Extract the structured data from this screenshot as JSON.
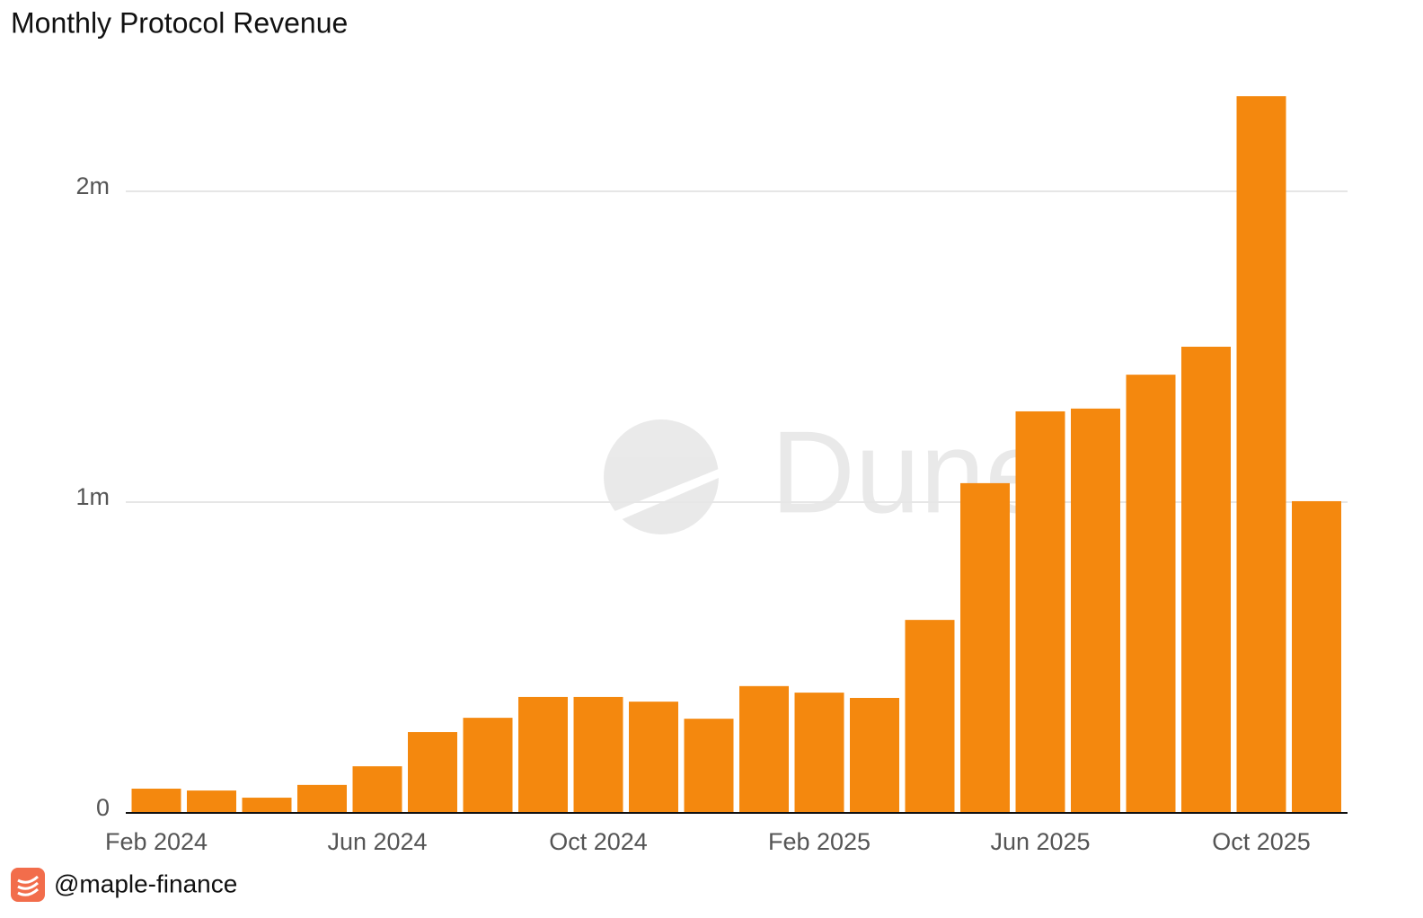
{
  "chart_data": {
    "type": "bar",
    "title": "Monthly Protocol Revenue",
    "categories": [
      "Feb 2024",
      null,
      null,
      null,
      "Jun 2024",
      null,
      null,
      null,
      "Oct 2024",
      null,
      null,
      null,
      "Feb 2025",
      null,
      null,
      null,
      "Jun 2025",
      null,
      null,
      null,
      "Oct 2025",
      null
    ],
    "values": [
      78000,
      72000,
      49000,
      90000,
      150000,
      260000,
      306000,
      373000,
      373000,
      358000,
      303000,
      408000,
      387000,
      370000,
      621000,
      1061000,
      1292000,
      1301000,
      1410000,
      1500000,
      2306000,
      1003000
    ],
    "color": "#f4880e",
    "ylim": [
      0,
      2400000
    ],
    "yticks": [
      0,
      {
        "value": 1000000,
        "label": "1m"
      },
      {
        "value": 2000000,
        "label": "2m"
      }
    ],
    "grid": true,
    "watermark": "Dune",
    "footer": "@maple-finance"
  }
}
